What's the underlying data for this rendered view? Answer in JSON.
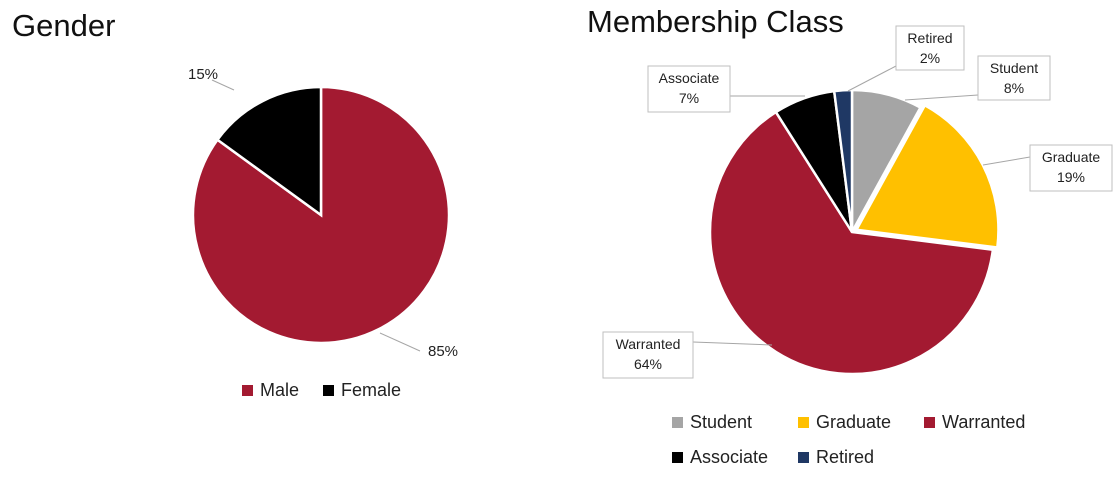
{
  "chart_data": [
    {
      "type": "pie",
      "title": "Gender",
      "categories": [
        "Male",
        "Female"
      ],
      "values": [
        85,
        15
      ],
      "labels": [
        "85%",
        "15%"
      ],
      "colors": [
        "#A31A31",
        "#000000"
      ],
      "legend": "bottom"
    },
    {
      "type": "pie",
      "title": "Membership Class",
      "categories": [
        "Student",
        "Graduate",
        "Warranted",
        "Associate",
        "Retired"
      ],
      "values": [
        8,
        19,
        64,
        7,
        2
      ],
      "labels": [
        "8%",
        "19%",
        "64%",
        "7%",
        "2%"
      ],
      "colors": [
        "#A5A5A5",
        "#FFC000",
        "#A31A31",
        "#000000",
        "#1F3864"
      ],
      "legend": "bottom"
    }
  ]
}
